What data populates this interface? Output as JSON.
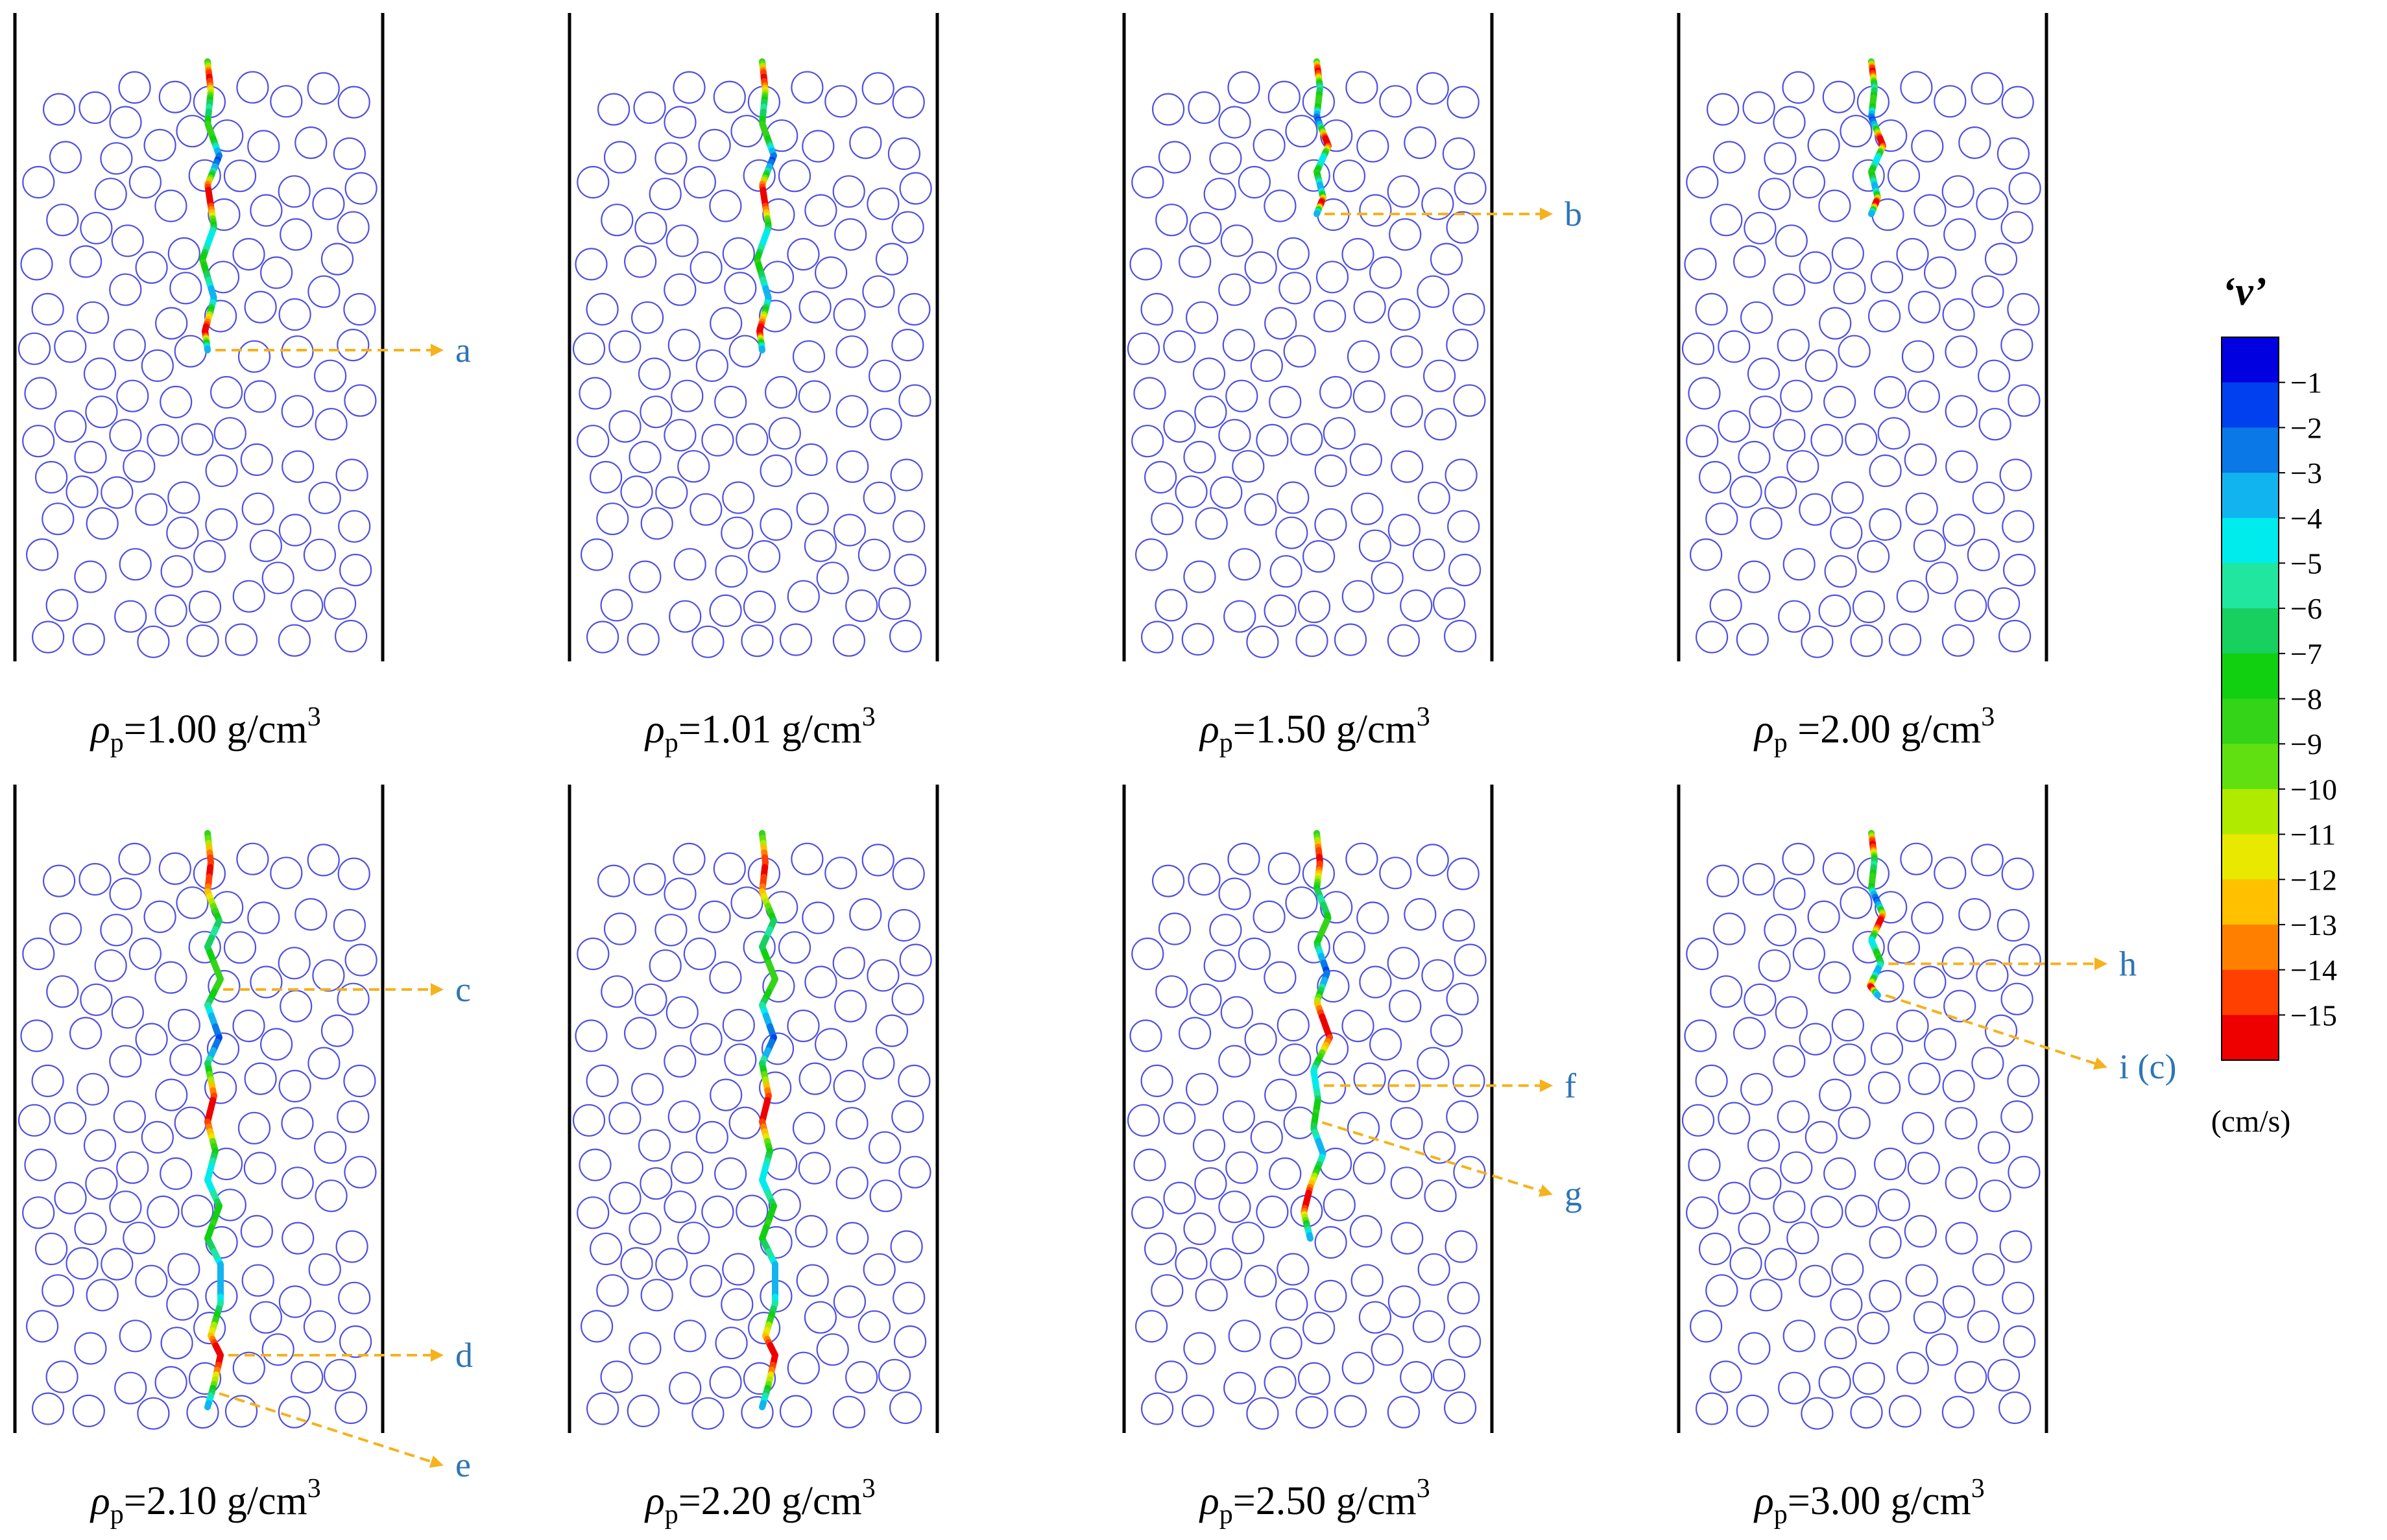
{
  "figure": {
    "panels": [
      {
        "density": "1.00",
        "label": "ρp=1.00 g/cm3",
        "path": "longA",
        "markers": [
          {
            "name": "a",
            "target": 1.0,
            "kind": "flat"
          }
        ]
      },
      {
        "density": "1.01",
        "label": "ρp=1.01 g/cm3",
        "path": "longA",
        "markers": []
      },
      {
        "density": "1.50",
        "label": "ρp=1.50 g/cm3",
        "path": "short",
        "markers": [
          {
            "name": "b",
            "target": 1.0,
            "kind": "flat"
          }
        ]
      },
      {
        "density": "2.00",
        "label": "ρp =2.00 g/cm3",
        "path": "short",
        "markers": []
      },
      {
        "density": "2.10",
        "label": "ρp=2.10 g/cm3",
        "path": "longB",
        "markers": [
          {
            "name": "c",
            "target": 0.27,
            "kind": "flat"
          },
          {
            "name": "d",
            "target": 0.9,
            "kind": "flat"
          },
          {
            "name": "e",
            "target": 0.97,
            "kind": "down"
          }
        ]
      },
      {
        "density": "2.20",
        "label": "ρp=2.20 g/cm3",
        "path": "longB",
        "markers": []
      },
      {
        "density": "2.50",
        "label": "ρp=2.50 g/cm3",
        "path": "medium",
        "markers": [
          {
            "name": "f",
            "target": 0.61,
            "kind": "flat"
          },
          {
            "name": "g",
            "target": 0.7,
            "kind": "down"
          }
        ]
      },
      {
        "density": "3.00",
        "label": "ρp=3.00 g/cm3",
        "path": "shortC",
        "markers": [
          {
            "name": "h",
            "target": 0.72,
            "kind": "flat"
          },
          {
            "name": "i (c)",
            "target": 1.0,
            "kind": "down"
          }
        ]
      }
    ],
    "colorbar": {
      "title": "‘v’",
      "unit": "(cm/s)",
      "ticks": [
        "−1",
        "−2",
        "−3",
        "−4",
        "−5",
        "−6",
        "−7",
        "−8",
        "−9",
        "−10",
        "−11",
        "−12",
        "−13",
        "−14",
        "−15"
      ],
      "colors": [
        "#0000e0",
        "#0040ee",
        "#0a78e6",
        "#12b4f0",
        "#00ecec",
        "#20e6a0",
        "#18d060",
        "#10d010",
        "#34d418",
        "#60e010",
        "#b0ea00",
        "#e8e800",
        "#ffc000",
        "#ff8000",
        "#ff4000",
        "#ee0000"
      ]
    },
    "colors": {
      "particle": "#5050e0",
      "arrow": "#f5b21c",
      "marker_text": "#2e75b6"
    }
  }
}
